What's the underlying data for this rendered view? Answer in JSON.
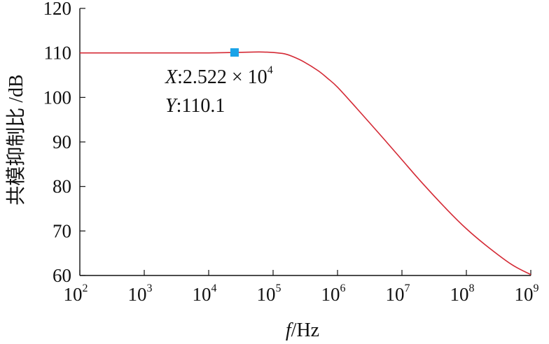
{
  "chart_data": {
    "type": "line",
    "xlabel_italic": "f",
    "xlabel_rest": "/Hz",
    "ylabel": "共模抑制比 /dB",
    "xscale": "log",
    "xlim": [
      100,
      1000000000
    ],
    "ylim": [
      60,
      120
    ],
    "x_tick_base": "10",
    "x_tick_exponents": [
      "2",
      "3",
      "4",
      "5",
      "6",
      "7",
      "8",
      "9"
    ],
    "y_ticks": [
      60,
      70,
      80,
      90,
      100,
      110,
      120
    ],
    "series": [
      {
        "color": "#d42a35",
        "x": [
          100,
          1000,
          10000,
          25220,
          50000,
          70000,
          100000,
          150000,
          200000,
          300000,
          500000,
          700000,
          1000000,
          2000000,
          5000000,
          10000000,
          20000000,
          50000000,
          100000000,
          200000000,
          500000000,
          1000000000
        ],
        "y": [
          110.0,
          110.0,
          110.0,
          110.1,
          110.2,
          110.2,
          110.1,
          109.8,
          109.2,
          108.0,
          106.0,
          104.3,
          102.3,
          97.5,
          91.0,
          86.0,
          81.0,
          74.8,
          70.5,
          66.8,
          62.5,
          60.2
        ]
      }
    ],
    "marker": {
      "x": 25220,
      "y": 110.1,
      "color": "#1aa3e8",
      "label_x_prefix": "X",
      "label_x_value": ":2.522 × 10",
      "label_x_exp": "4",
      "label_y_prefix": "Y",
      "label_y_value": ":110.1"
    }
  }
}
